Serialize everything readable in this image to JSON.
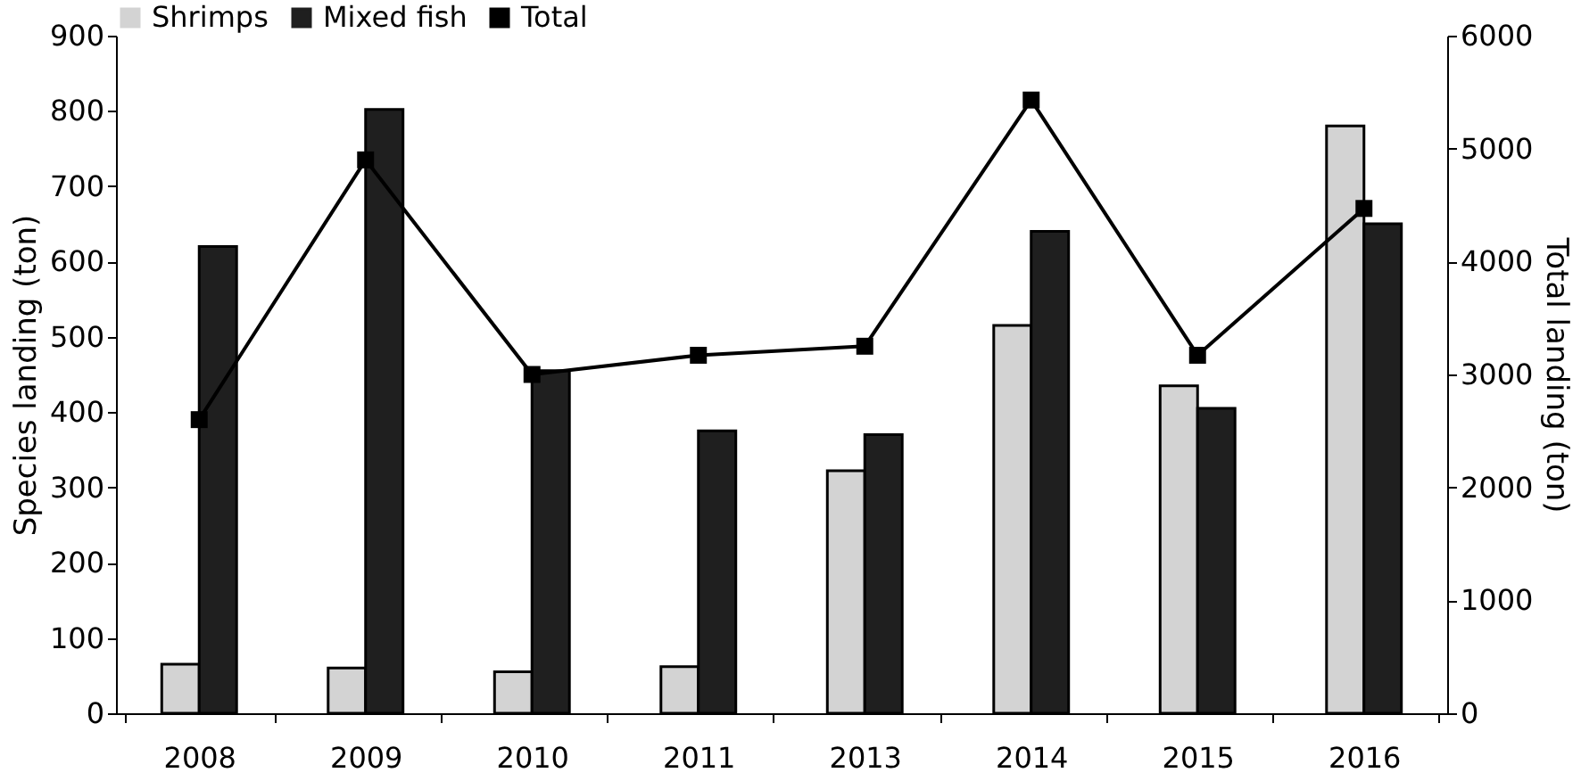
{
  "chart_data": {
    "type": "bar",
    "ylabel": "Species landing (ton)",
    "y2label": "Total landing (ton)",
    "categories": [
      "2008",
      "2009",
      "2010",
      "2011",
      "2013",
      "2014",
      "2015",
      "2016"
    ],
    "series": [
      {
        "name": "Shrimps",
        "color": "#d3d3d3",
        "values": [
          65,
          60,
          55,
          62,
          322,
          515,
          435,
          780
        ]
      },
      {
        "name": "Mixed fish",
        "color": "#1f1f1f",
        "values": [
          620,
          802,
          455,
          375,
          370,
          640,
          405,
          650
        ]
      },
      {
        "name": "Total",
        "type": "line",
        "axis": "y2",
        "color": "#000000",
        "marker": "square",
        "values": [
          2600,
          4900,
          3000,
          3170,
          3250,
          5430,
          3170,
          4470
        ]
      }
    ],
    "ylim": [
      0,
      900
    ],
    "yticks": [
      0,
      100,
      200,
      300,
      400,
      500,
      600,
      700,
      800,
      900
    ],
    "y2lim": [
      0,
      6000
    ],
    "y2ticks": [
      0,
      1000,
      2000,
      3000,
      4000,
      5000,
      6000
    ],
    "legend": "top",
    "grid": false
  }
}
